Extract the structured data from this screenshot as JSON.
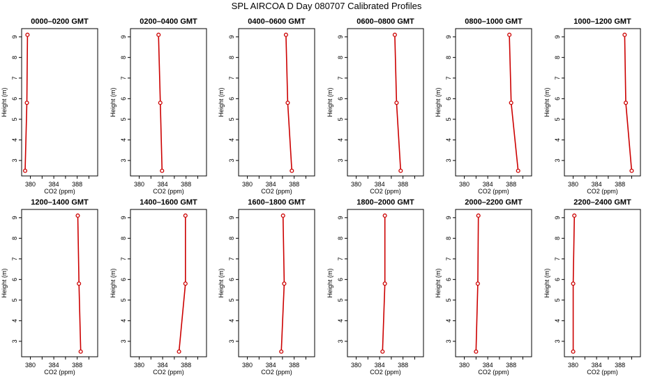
{
  "title": "SPL AIRCOA D  Day 080707  Calibrated Profiles",
  "colors": {
    "profile": "#cc0000",
    "axis": "#000000",
    "background": "#ffffff"
  },
  "chart_data": [
    {
      "type": "line",
      "title": "0000–0200 GMT",
      "xlabel": "CO2 (ppm)",
      "ylabel": "Height (m)",
      "x_ticks": [
        "380",
        "384",
        "388"
      ],
      "y_ticks": [
        "3",
        "4",
        "5",
        "6",
        "7",
        "8",
        "9"
      ],
      "xlim": [
        378.5,
        391.5
      ],
      "ylim": [
        2.25,
        9.4
      ],
      "grid": false,
      "series": [
        {
          "x": [
            379.1,
            379.4,
            379.5
          ],
          "y": [
            2.5,
            5.8,
            9.1
          ]
        }
      ]
    },
    {
      "type": "line",
      "title": "0200–0400 GMT",
      "xlabel": "CO2 (ppm)",
      "ylabel": "Height (m)",
      "x_ticks": [
        "380",
        "384",
        "388"
      ],
      "y_ticks": [
        "3",
        "4",
        "5",
        "6",
        "7",
        "8",
        "9"
      ],
      "xlim": [
        378.5,
        391.5
      ],
      "ylim": [
        2.25,
        9.4
      ],
      "grid": false,
      "series": [
        {
          "x": [
            383.9,
            383.6,
            383.3
          ],
          "y": [
            2.5,
            5.8,
            9.1
          ]
        }
      ]
    },
    {
      "type": "line",
      "title": "0400–0600 GMT",
      "xlabel": "CO2 (ppm)",
      "ylabel": "Height (m)",
      "x_ticks": [
        "380",
        "384",
        "388"
      ],
      "y_ticks": [
        "3",
        "4",
        "5",
        "6",
        "7",
        "8",
        "9"
      ],
      "xlim": [
        378.5,
        391.5
      ],
      "ylim": [
        2.25,
        9.4
      ],
      "grid": false,
      "series": [
        {
          "x": [
            387.6,
            386.9,
            386.6
          ],
          "y": [
            2.5,
            5.8,
            9.1
          ]
        }
      ]
    },
    {
      "type": "line",
      "title": "0600–0800 GMT",
      "xlabel": "CO2 (ppm)",
      "ylabel": "Height (m)",
      "x_ticks": [
        "380",
        "384",
        "388"
      ],
      "y_ticks": [
        "3",
        "4",
        "5",
        "6",
        "7",
        "8",
        "9"
      ],
      "xlim": [
        378.5,
        391.5
      ],
      "ylim": [
        2.25,
        9.4
      ],
      "grid": false,
      "series": [
        {
          "x": [
            387.6,
            386.9,
            386.6
          ],
          "y": [
            2.5,
            5.8,
            9.1
          ]
        }
      ]
    },
    {
      "type": "line",
      "title": "0800–1000 GMT",
      "xlabel": "CO2 (ppm)",
      "ylabel": "Height (m)",
      "x_ticks": [
        "380",
        "384",
        "388"
      ],
      "y_ticks": [
        "3",
        "4",
        "5",
        "6",
        "7",
        "8",
        "9"
      ],
      "xlim": [
        378.5,
        391.5
      ],
      "ylim": [
        2.25,
        9.4
      ],
      "grid": false,
      "series": [
        {
          "x": [
            389.2,
            388.0,
            387.7
          ],
          "y": [
            2.5,
            5.8,
            9.1
          ]
        }
      ]
    },
    {
      "type": "line",
      "title": "1000–1200 GMT",
      "xlabel": "CO2 (ppm)",
      "ylabel": "Height (m)",
      "x_ticks": [
        "380",
        "384",
        "388"
      ],
      "y_ticks": [
        "3",
        "4",
        "5",
        "6",
        "7",
        "8",
        "9"
      ],
      "xlim": [
        378.5,
        391.5
      ],
      "ylim": [
        2.25,
        9.4
      ],
      "grid": false,
      "series": [
        {
          "x": [
            390.0,
            389.0,
            388.8
          ],
          "y": [
            2.5,
            5.8,
            9.1
          ]
        }
      ]
    },
    {
      "type": "line",
      "title": "1200–1400 GMT",
      "xlabel": "CO2 (ppm)",
      "ylabel": "Height (m)",
      "x_ticks": [
        "380",
        "384",
        "388"
      ],
      "y_ticks": [
        "3",
        "4",
        "5",
        "6",
        "7",
        "8",
        "9"
      ],
      "xlim": [
        378.5,
        391.5
      ],
      "ylim": [
        2.25,
        9.4
      ],
      "grid": false,
      "series": [
        {
          "x": [
            388.6,
            388.3,
            388.1
          ],
          "y": [
            2.5,
            5.8,
            9.1
          ]
        }
      ]
    },
    {
      "type": "line",
      "title": "1400–1600 GMT",
      "xlabel": "CO2 (ppm)",
      "ylabel": "Height (m)",
      "x_ticks": [
        "380",
        "384",
        "388"
      ],
      "y_ticks": [
        "3",
        "4",
        "5",
        "6",
        "7",
        "8",
        "9"
      ],
      "xlim": [
        378.5,
        391.5
      ],
      "ylim": [
        2.25,
        9.4
      ],
      "grid": false,
      "series": [
        {
          "x": [
            386.8,
            387.9,
            387.9
          ],
          "y": [
            2.5,
            5.8,
            9.1
          ]
        }
      ]
    },
    {
      "type": "line",
      "title": "1600–1800 GMT",
      "xlabel": "CO2 (ppm)",
      "ylabel": "Height (m)",
      "x_ticks": [
        "380",
        "384",
        "388"
      ],
      "y_ticks": [
        "3",
        "4",
        "5",
        "6",
        "7",
        "8",
        "9"
      ],
      "xlim": [
        378.5,
        391.5
      ],
      "ylim": [
        2.25,
        9.4
      ],
      "grid": false,
      "series": [
        {
          "x": [
            385.8,
            386.3,
            386.1
          ],
          "y": [
            2.5,
            5.8,
            9.1
          ]
        }
      ]
    },
    {
      "type": "line",
      "title": "1800–2000 GMT",
      "xlabel": "CO2 (ppm)",
      "ylabel": "Height (m)",
      "x_ticks": [
        "380",
        "384",
        "388"
      ],
      "y_ticks": [
        "3",
        "4",
        "5",
        "6",
        "7",
        "8",
        "9"
      ],
      "xlim": [
        378.5,
        391.5
      ],
      "ylim": [
        2.25,
        9.4
      ],
      "grid": false,
      "series": [
        {
          "x": [
            384.5,
            384.9,
            384.9
          ],
          "y": [
            2.5,
            5.8,
            9.1
          ]
        }
      ]
    },
    {
      "type": "line",
      "title": "2000–2200 GMT",
      "xlabel": "CO2 (ppm)",
      "ylabel": "Height (m)",
      "x_ticks": [
        "380",
        "384",
        "388"
      ],
      "y_ticks": [
        "3",
        "4",
        "5",
        "6",
        "7",
        "8",
        "9"
      ],
      "xlim": [
        378.5,
        391.5
      ],
      "ylim": [
        2.25,
        9.4
      ],
      "grid": false,
      "series": [
        {
          "x": [
            382.0,
            382.3,
            382.4
          ],
          "y": [
            2.5,
            5.8,
            9.1
          ]
        }
      ]
    },
    {
      "type": "line",
      "title": "2200–2400 GMT",
      "xlabel": "CO2 (ppm)",
      "ylabel": "Height (m)",
      "x_ticks": [
        "380",
        "384",
        "388"
      ],
      "y_ticks": [
        "3",
        "4",
        "5",
        "6",
        "7",
        "8",
        "9"
      ],
      "xlim": [
        378.5,
        391.5
      ],
      "ylim": [
        2.25,
        9.4
      ],
      "grid": false,
      "series": [
        {
          "x": [
            380.0,
            380.0,
            380.2
          ],
          "y": [
            2.5,
            5.8,
            9.1
          ]
        }
      ]
    }
  ]
}
